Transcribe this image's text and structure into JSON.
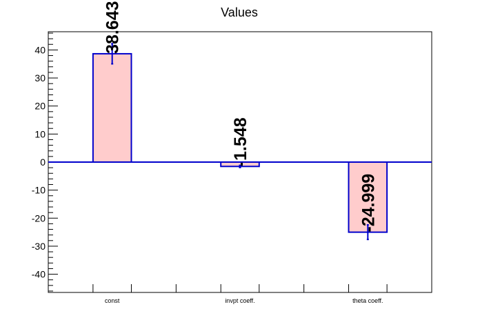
{
  "chart_data": {
    "type": "bar",
    "title": "Values",
    "xlabel": "",
    "ylabel": "",
    "categories": [
      "const",
      "invpt coeff.",
      "theta coeff."
    ],
    "values": [
      38.643,
      -1.548,
      -24.999
    ],
    "errors": [
      3.6,
      0.4,
      2.6
    ],
    "value_labels": [
      "38.643",
      "-1.548",
      "-24.999"
    ],
    "y_ticks": [
      -40,
      -30,
      -20,
      -10,
      0,
      10,
      20,
      30,
      40
    ],
    "ylim": [
      -46.5,
      46.5
    ],
    "grid": false,
    "bar_fill_color": "#ffcccc",
    "bar_edge_color": "#0000cc",
    "zero_line_color": "#0000cc",
    "label_color": "#000000"
  }
}
